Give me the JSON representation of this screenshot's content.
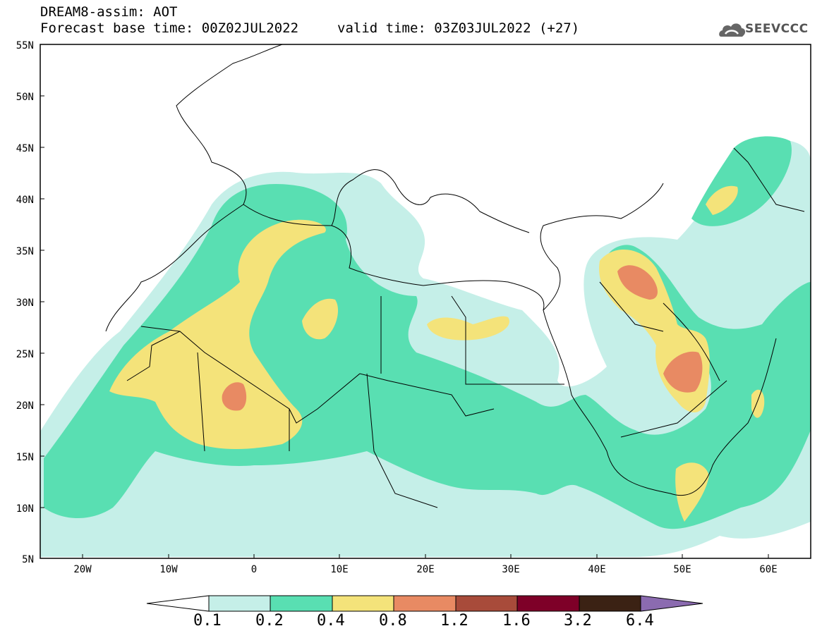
{
  "header": {
    "title": "DREAM8-assim: AOT",
    "base_time": "Forecast base time: 00Z02JUL2022",
    "valid_time": "valid time: 03Z03JUL2022 (+27)",
    "logo_text": "SEEVCCC"
  },
  "map": {
    "y_axis_labels": [
      "55N",
      "50N",
      "45N",
      "40N",
      "35N",
      "30N",
      "25N",
      "20N",
      "15N",
      "10N",
      "5N"
    ],
    "x_axis_labels": [
      "20W",
      "10W",
      "0",
      "10E",
      "20E",
      "30E",
      "40E",
      "50E",
      "60E"
    ]
  },
  "colorbar": {
    "labels": [
      "0.1",
      "0.2",
      "0.4",
      "0.8",
      "1.2",
      "1.6",
      "3.2",
      "6.4"
    ],
    "colors": [
      "#ffffff",
      "#c5efe8",
      "#59dfb2",
      "#f4e37a",
      "#e88a63",
      "#a84b3a",
      "#7e0028",
      "#3b2214",
      "#8b6bb0"
    ]
  },
  "palette": {
    "lvl1": "#c5efe8",
    "lvl2": "#59dfb2",
    "lvl3": "#f4e37a",
    "lvl4": "#e88a63"
  }
}
